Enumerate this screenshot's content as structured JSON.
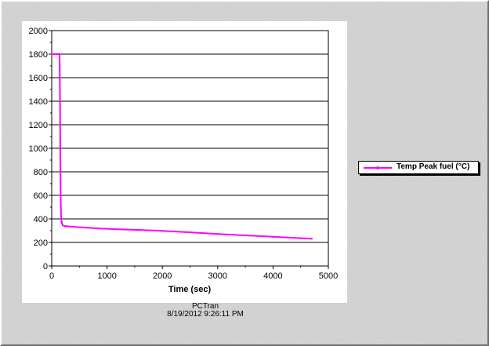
{
  "footer": {
    "app_name": "PCTran",
    "timestamp": "8/19/2012 9:26:11 PM"
  },
  "chart_data": {
    "type": "line",
    "xlabel": "Time (sec)",
    "ylabel": "",
    "xlim": [
      0,
      5000
    ],
    "ylim": [
      0,
      2000
    ],
    "x_ticks": [
      "0",
      "1000",
      "2000",
      "3000",
      "4000",
      "5000"
    ],
    "y_ticks": [
      "0",
      "200",
      "400",
      "600",
      "800",
      "1000",
      "1200",
      "1400",
      "1600",
      "1800",
      "2000"
    ],
    "grid": "horizontal",
    "legend_position": "right",
    "series": [
      {
        "name": "Temp Peak fuel (°C)",
        "color": "#ff00ff",
        "x": [
          0,
          50,
          100,
          140,
          145,
          150,
          155,
          160,
          165,
          170,
          180,
          200,
          250,
          400,
          800,
          1200,
          1600,
          2000,
          2500,
          3000,
          3500,
          4000,
          4500,
          4700
        ],
        "y": [
          1800,
          1800,
          1800,
          1800,
          1700,
          1400,
          1000,
          700,
          500,
          420,
          370,
          345,
          338,
          333,
          320,
          312,
          306,
          298,
          286,
          272,
          260,
          248,
          236,
          232
        ]
      }
    ]
  }
}
